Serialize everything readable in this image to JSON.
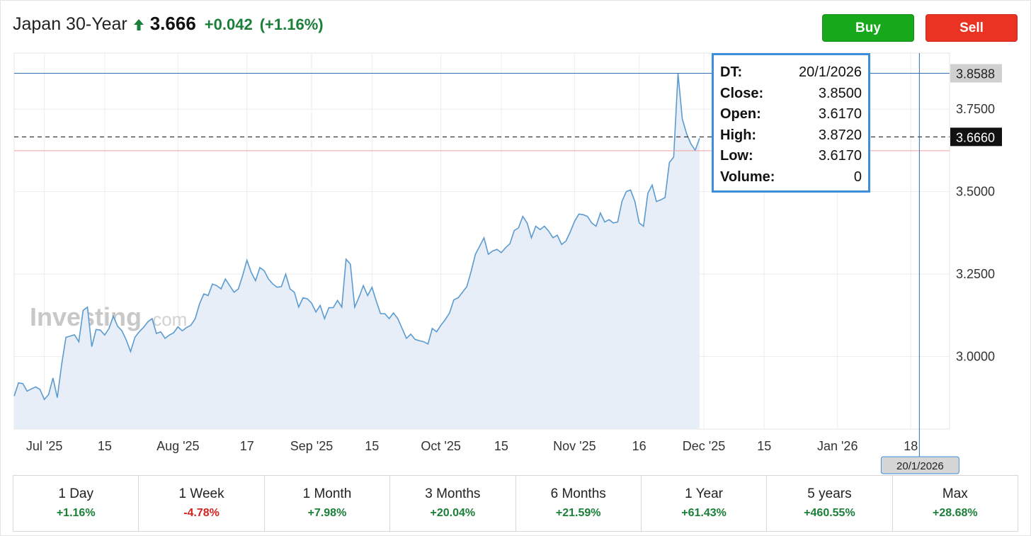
{
  "instrument": {
    "name": "Japan 30-Year",
    "price": "3.666",
    "change": "+0.042",
    "change_pct": "(+1.16%)",
    "direction": "up"
  },
  "actions": {
    "buy_label": "Buy",
    "sell_label": "Sell"
  },
  "tooltip": {
    "rows": [
      {
        "key": "DT:",
        "value": "20/1/2026"
      },
      {
        "key": "Close:",
        "value": "3.8500"
      },
      {
        "key": "Open:",
        "value": "3.6170"
      },
      {
        "key": "High:",
        "value": "3.8720"
      },
      {
        "key": "Low:",
        "value": "3.6170"
      },
      {
        "key": "Volume:",
        "value": "0"
      }
    ]
  },
  "watermark": {
    "brand": "Investing",
    "suffix": ".com"
  },
  "ranges": [
    {
      "label": "1 Day",
      "value": "+1.16%",
      "sign": "pos"
    },
    {
      "label": "1 Week",
      "value": "-4.78%",
      "sign": "neg"
    },
    {
      "label": "1 Month",
      "value": "+7.98%",
      "sign": "pos"
    },
    {
      "label": "3 Months",
      "value": "+20.04%",
      "sign": "pos"
    },
    {
      "label": "6 Months",
      "value": "+21.59%",
      "sign": "pos"
    },
    {
      "label": "1 Year",
      "value": "+61.43%",
      "sign": "pos"
    },
    {
      "label": "5 years",
      "value": "+460.55%",
      "sign": "pos"
    },
    {
      "label": "Max",
      "value": "+28.68%",
      "sign": "pos"
    }
  ],
  "colors": {
    "line": "#5b9bd0",
    "area": "#e7eef7",
    "crosshair": "#2f6fb3",
    "previous_close_line": "#f0a0a0",
    "positive": "#1a7f37",
    "negative": "#d32222"
  },
  "chart_data": {
    "type": "area",
    "ylim": [
      2.78,
      3.92
    ],
    "y_ticks": [
      {
        "value": 3.0,
        "label": "3.0000"
      },
      {
        "value": 3.25,
        "label": "3.2500"
      },
      {
        "value": 3.5,
        "label": "3.5000"
      },
      {
        "value": 3.75,
        "label": "3.7500"
      }
    ],
    "x_ticks": [
      {
        "date": "2025-07-01",
        "label": "Jul '25"
      },
      {
        "date": "2025-07-15",
        "label": "15"
      },
      {
        "date": "2025-08-01",
        "label": "Aug '25"
      },
      {
        "date": "2025-08-17",
        "label": "17"
      },
      {
        "date": "2025-09-01",
        "label": "Sep '25"
      },
      {
        "date": "2025-09-15",
        "label": "15"
      },
      {
        "date": "2025-10-01",
        "label": "Oct '25"
      },
      {
        "date": "2025-10-15",
        "label": "15"
      },
      {
        "date": "2025-11-01",
        "label": "Nov '25"
      },
      {
        "date": "2025-11-16",
        "label": "16"
      },
      {
        "date": "2025-12-01",
        "label": "Dec '25"
      },
      {
        "date": "2025-12-15",
        "label": "15"
      },
      {
        "date": "2026-01-01",
        "label": "Jan '26"
      },
      {
        "date": "2026-01-18",
        "label": "18"
      }
    ],
    "hover": {
      "date": "2026-01-20",
      "label": "20/1/2026",
      "y_value": 3.8588,
      "y_label": "3.8588"
    },
    "current": {
      "value": 3.666,
      "label": "3.6660"
    },
    "previous_close": 3.624,
    "grid": true,
    "series": [
      {
        "values": [
          [
            "2025-06-24",
            2.88
          ],
          [
            "2025-06-25",
            2.92
          ],
          [
            "2025-06-26",
            2.918
          ],
          [
            "2025-06-27",
            2.895
          ],
          [
            "2025-06-28",
            2.902
          ],
          [
            "2025-06-29",
            2.908
          ],
          [
            "2025-06-30",
            2.9
          ],
          [
            "2025-07-01",
            2.87
          ],
          [
            "2025-07-02",
            2.885
          ],
          [
            "2025-07-03",
            2.935
          ],
          [
            "2025-07-04",
            2.875
          ],
          [
            "2025-07-05",
            2.975
          ],
          [
            "2025-07-06",
            3.058
          ],
          [
            "2025-07-07",
            3.062
          ],
          [
            "2025-07-08",
            3.066
          ],
          [
            "2025-07-09",
            3.045
          ],
          [
            "2025-07-10",
            3.14
          ],
          [
            "2025-07-11",
            3.15
          ],
          [
            "2025-07-12",
            3.03
          ],
          [
            "2025-07-13",
            3.082
          ],
          [
            "2025-07-14",
            3.08
          ],
          [
            "2025-07-15",
            3.065
          ],
          [
            "2025-07-16",
            3.085
          ],
          [
            "2025-07-17",
            3.122
          ],
          [
            "2025-07-18",
            3.092
          ],
          [
            "2025-07-19",
            3.078
          ],
          [
            "2025-07-20",
            3.05
          ],
          [
            "2025-07-21",
            3.015
          ],
          [
            "2025-07-22",
            3.058
          ],
          [
            "2025-07-23",
            3.075
          ],
          [
            "2025-07-24",
            3.088
          ],
          [
            "2025-07-25",
            3.105
          ],
          [
            "2025-07-26",
            3.115
          ],
          [
            "2025-07-27",
            3.07
          ],
          [
            "2025-07-28",
            3.075
          ],
          [
            "2025-07-29",
            3.055
          ],
          [
            "2025-07-30",
            3.065
          ],
          [
            "2025-07-31",
            3.072
          ],
          [
            "2025-08-01",
            3.09
          ],
          [
            "2025-08-02",
            3.078
          ],
          [
            "2025-08-03",
            3.088
          ],
          [
            "2025-08-04",
            3.095
          ],
          [
            "2025-08-05",
            3.115
          ],
          [
            "2025-08-06",
            3.16
          ],
          [
            "2025-08-07",
            3.19
          ],
          [
            "2025-08-08",
            3.185
          ],
          [
            "2025-08-09",
            3.22
          ],
          [
            "2025-08-10",
            3.215
          ],
          [
            "2025-08-11",
            3.205
          ],
          [
            "2025-08-12",
            3.235
          ],
          [
            "2025-08-13",
            3.215
          ],
          [
            "2025-08-14",
            3.195
          ],
          [
            "2025-08-15",
            3.205
          ],
          [
            "2025-08-16",
            3.245
          ],
          [
            "2025-08-17",
            3.292
          ],
          [
            "2025-08-18",
            3.255
          ],
          [
            "2025-08-19",
            3.23
          ],
          [
            "2025-08-20",
            3.27
          ],
          [
            "2025-08-21",
            3.26
          ],
          [
            "2025-08-22",
            3.235
          ],
          [
            "2025-08-23",
            3.22
          ],
          [
            "2025-08-24",
            3.21
          ],
          [
            "2025-08-25",
            3.212
          ],
          [
            "2025-08-26",
            3.25
          ],
          [
            "2025-08-27",
            3.205
          ],
          [
            "2025-08-28",
            3.195
          ],
          [
            "2025-08-29",
            3.15
          ],
          [
            "2025-08-30",
            3.178
          ],
          [
            "2025-08-31",
            3.175
          ],
          [
            "2025-09-01",
            3.162
          ],
          [
            "2025-09-02",
            3.135
          ],
          [
            "2025-09-03",
            3.155
          ],
          [
            "2025-09-04",
            3.115
          ],
          [
            "2025-09-05",
            3.148
          ],
          [
            "2025-09-06",
            3.148
          ],
          [
            "2025-09-07",
            3.17
          ],
          [
            "2025-09-08",
            3.15
          ],
          [
            "2025-09-09",
            3.295
          ],
          [
            "2025-09-10",
            3.28
          ],
          [
            "2025-09-11",
            3.15
          ],
          [
            "2025-09-12",
            3.18
          ],
          [
            "2025-09-13",
            3.215
          ],
          [
            "2025-09-14",
            3.185
          ],
          [
            "2025-09-15",
            3.21
          ],
          [
            "2025-09-16",
            3.168
          ],
          [
            "2025-09-17",
            3.13
          ],
          [
            "2025-09-18",
            3.13
          ],
          [
            "2025-09-19",
            3.115
          ],
          [
            "2025-09-20",
            3.132
          ],
          [
            "2025-09-21",
            3.115
          ],
          [
            "2025-09-22",
            3.085
          ],
          [
            "2025-09-23",
            3.055
          ],
          [
            "2025-09-24",
            3.068
          ],
          [
            "2025-09-25",
            3.052
          ],
          [
            "2025-09-26",
            3.048
          ],
          [
            "2025-09-27",
            3.045
          ],
          [
            "2025-09-28",
            3.038
          ],
          [
            "2025-09-29",
            3.085
          ],
          [
            "2025-09-30",
            3.075
          ],
          [
            "2025-10-01",
            3.095
          ],
          [
            "2025-10-02",
            3.112
          ],
          [
            "2025-10-03",
            3.132
          ],
          [
            "2025-10-04",
            3.172
          ],
          [
            "2025-10-05",
            3.178
          ],
          [
            "2025-10-06",
            3.195
          ],
          [
            "2025-10-07",
            3.212
          ],
          [
            "2025-10-08",
            3.258
          ],
          [
            "2025-10-09",
            3.31
          ],
          [
            "2025-10-10",
            3.335
          ],
          [
            "2025-10-11",
            3.36
          ],
          [
            "2025-10-12",
            3.31
          ],
          [
            "2025-10-13",
            3.32
          ],
          [
            "2025-10-14",
            3.325
          ],
          [
            "2025-10-15",
            3.315
          ],
          [
            "2025-10-16",
            3.33
          ],
          [
            "2025-10-17",
            3.342
          ],
          [
            "2025-10-18",
            3.382
          ],
          [
            "2025-10-19",
            3.39
          ],
          [
            "2025-10-20",
            3.425
          ],
          [
            "2025-10-21",
            3.405
          ],
          [
            "2025-10-22",
            3.36
          ],
          [
            "2025-10-23",
            3.395
          ],
          [
            "2025-10-24",
            3.385
          ],
          [
            "2025-10-25",
            3.395
          ],
          [
            "2025-10-26",
            3.38
          ],
          [
            "2025-10-27",
            3.36
          ],
          [
            "2025-10-28",
            3.368
          ],
          [
            "2025-10-29",
            3.34
          ],
          [
            "2025-10-30",
            3.35
          ],
          [
            "2025-10-31",
            3.378
          ],
          [
            "2025-11-01",
            3.41
          ],
          [
            "2025-11-02",
            3.432
          ],
          [
            "2025-11-03",
            3.43
          ],
          [
            "2025-11-04",
            3.425
          ],
          [
            "2025-11-05",
            3.405
          ],
          [
            "2025-11-06",
            3.395
          ],
          [
            "2025-11-07",
            3.435
          ],
          [
            "2025-11-08",
            3.408
          ],
          [
            "2025-11-09",
            3.415
          ],
          [
            "2025-11-10",
            3.405
          ],
          [
            "2025-11-11",
            3.408
          ],
          [
            "2025-11-12",
            3.47
          ],
          [
            "2025-11-13",
            3.5
          ],
          [
            "2025-11-14",
            3.505
          ],
          [
            "2025-11-15",
            3.47
          ],
          [
            "2025-11-16",
            3.405
          ],
          [
            "2025-11-17",
            3.395
          ],
          [
            "2025-11-18",
            3.495
          ],
          [
            "2025-11-19",
            3.52
          ],
          [
            "2025-11-20",
            3.47
          ],
          [
            "2025-11-21",
            3.475
          ],
          [
            "2025-11-22",
            3.482
          ],
          [
            "2025-11-23",
            3.588
          ],
          [
            "2025-11-24",
            3.605
          ],
          [
            "2025-11-25",
            3.858
          ],
          [
            "2025-11-26",
            3.72
          ],
          [
            "2025-11-27",
            3.675
          ],
          [
            "2025-11-28",
            3.645
          ],
          [
            "2025-11-29",
            3.625
          ],
          [
            "2025-11-30",
            3.662
          ]
        ]
      }
    ]
  }
}
